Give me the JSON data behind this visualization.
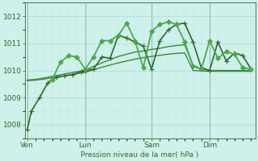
{
  "background_color": "#cff0eb",
  "grid_color_major": "#a8ddd8",
  "grid_color_minor": "#bce8e3",
  "line_color_dark": "#2d6a2d",
  "xlabel": "Pression niveau de la mer( hPa )",
  "ylim": [
    1007.5,
    1012.5
  ],
  "yticks": [
    1008,
    1009,
    1010,
    1011,
    1012
  ],
  "xtick_labels": [
    "Ven",
    "Lun",
    "Sam",
    "Dim"
  ],
  "xtick_positions": [
    0,
    7,
    15,
    22
  ],
  "x_vlines": [
    0,
    7,
    15,
    22
  ],
  "xlim": [
    -0.3,
    27.5
  ],
  "series": [
    {
      "x": [
        0,
        0.5,
        1.5,
        2.5,
        3.5,
        4.5,
        5.5,
        6.5,
        7,
        8,
        9,
        10,
        11,
        12,
        13,
        14,
        15,
        16,
        17,
        18,
        19,
        20,
        21,
        22,
        23,
        24,
        25,
        26,
        27
      ],
      "y": [
        1007.8,
        1008.5,
        1009.0,
        1009.55,
        1009.75,
        1009.8,
        1009.85,
        1009.95,
        1010.0,
        1010.05,
        1010.5,
        1010.45,
        1011.3,
        1011.2,
        1011.05,
        1010.9,
        1010.05,
        1011.1,
        1011.5,
        1011.7,
        1011.75,
        1011.05,
        1010.1,
        1010.0,
        1011.05,
        1010.35,
        1010.65,
        1010.55,
        1010.05
      ],
      "marker": "+",
      "markersize": 4,
      "lw": 1.2,
      "color": "#2d6a2d",
      "zorder": 4
    },
    {
      "x": [
        3,
        4,
        5,
        6,
        7,
        8,
        9,
        10,
        11,
        12,
        13,
        14,
        15,
        16,
        17,
        18,
        19,
        20,
        21,
        22,
        23,
        24,
        25,
        26,
        27
      ],
      "y": [
        1009.65,
        1010.3,
        1010.55,
        1010.5,
        1010.05,
        1010.5,
        1011.1,
        1011.1,
        1011.3,
        1011.75,
        1011.1,
        1010.1,
        1011.45,
        1011.7,
        1011.8,
        1011.7,
        1011.05,
        1010.15,
        1010.05,
        1011.1,
        1010.45,
        1010.7,
        1010.6,
        1010.1,
        1010.05
      ],
      "marker": "D",
      "markersize": 3,
      "markeredgewidth": 0.7,
      "lw": 1.3,
      "color": "#4aaa4a",
      "zorder": 5
    },
    {
      "x": [
        0,
        1,
        2,
        3,
        4,
        5,
        6,
        7,
        8,
        9,
        10,
        11,
        12,
        13,
        14,
        15,
        16,
        17,
        18,
        19,
        20,
        21,
        22,
        23,
        24,
        25,
        26,
        27
      ],
      "y": [
        1009.65,
        1009.67,
        1009.72,
        1009.78,
        1009.84,
        1009.9,
        1009.95,
        1010.02,
        1010.15,
        1010.28,
        1010.4,
        1010.52,
        1010.6,
        1010.68,
        1010.72,
        1010.78,
        1010.82,
        1010.88,
        1010.92,
        1010.95,
        1010.2,
        1010.05,
        1010.0,
        1010.0,
        1010.0,
        1010.0,
        1010.0,
        1010.0
      ],
      "marker": null,
      "lw": 1.0,
      "color": "#3a8a3a",
      "zorder": 2
    },
    {
      "x": [
        0,
        1,
        2,
        3,
        4,
        5,
        6,
        7,
        8,
        9,
        10,
        11,
        12,
        13,
        14,
        15,
        16,
        17,
        18,
        19,
        20,
        21,
        22,
        23,
        24,
        25,
        26,
        27
      ],
      "y": [
        1009.62,
        1009.64,
        1009.68,
        1009.73,
        1009.78,
        1009.83,
        1009.88,
        1009.93,
        1010.03,
        1010.12,
        1010.2,
        1010.28,
        1010.35,
        1010.42,
        1010.47,
        1010.52,
        1010.56,
        1010.6,
        1010.63,
        1010.65,
        1010.0,
        1009.98,
        1009.97,
        1009.97,
        1009.97,
        1009.97,
        1009.97,
        1009.97
      ],
      "marker": null,
      "lw": 1.0,
      "color": "#3a8a3a",
      "zorder": 2
    }
  ]
}
